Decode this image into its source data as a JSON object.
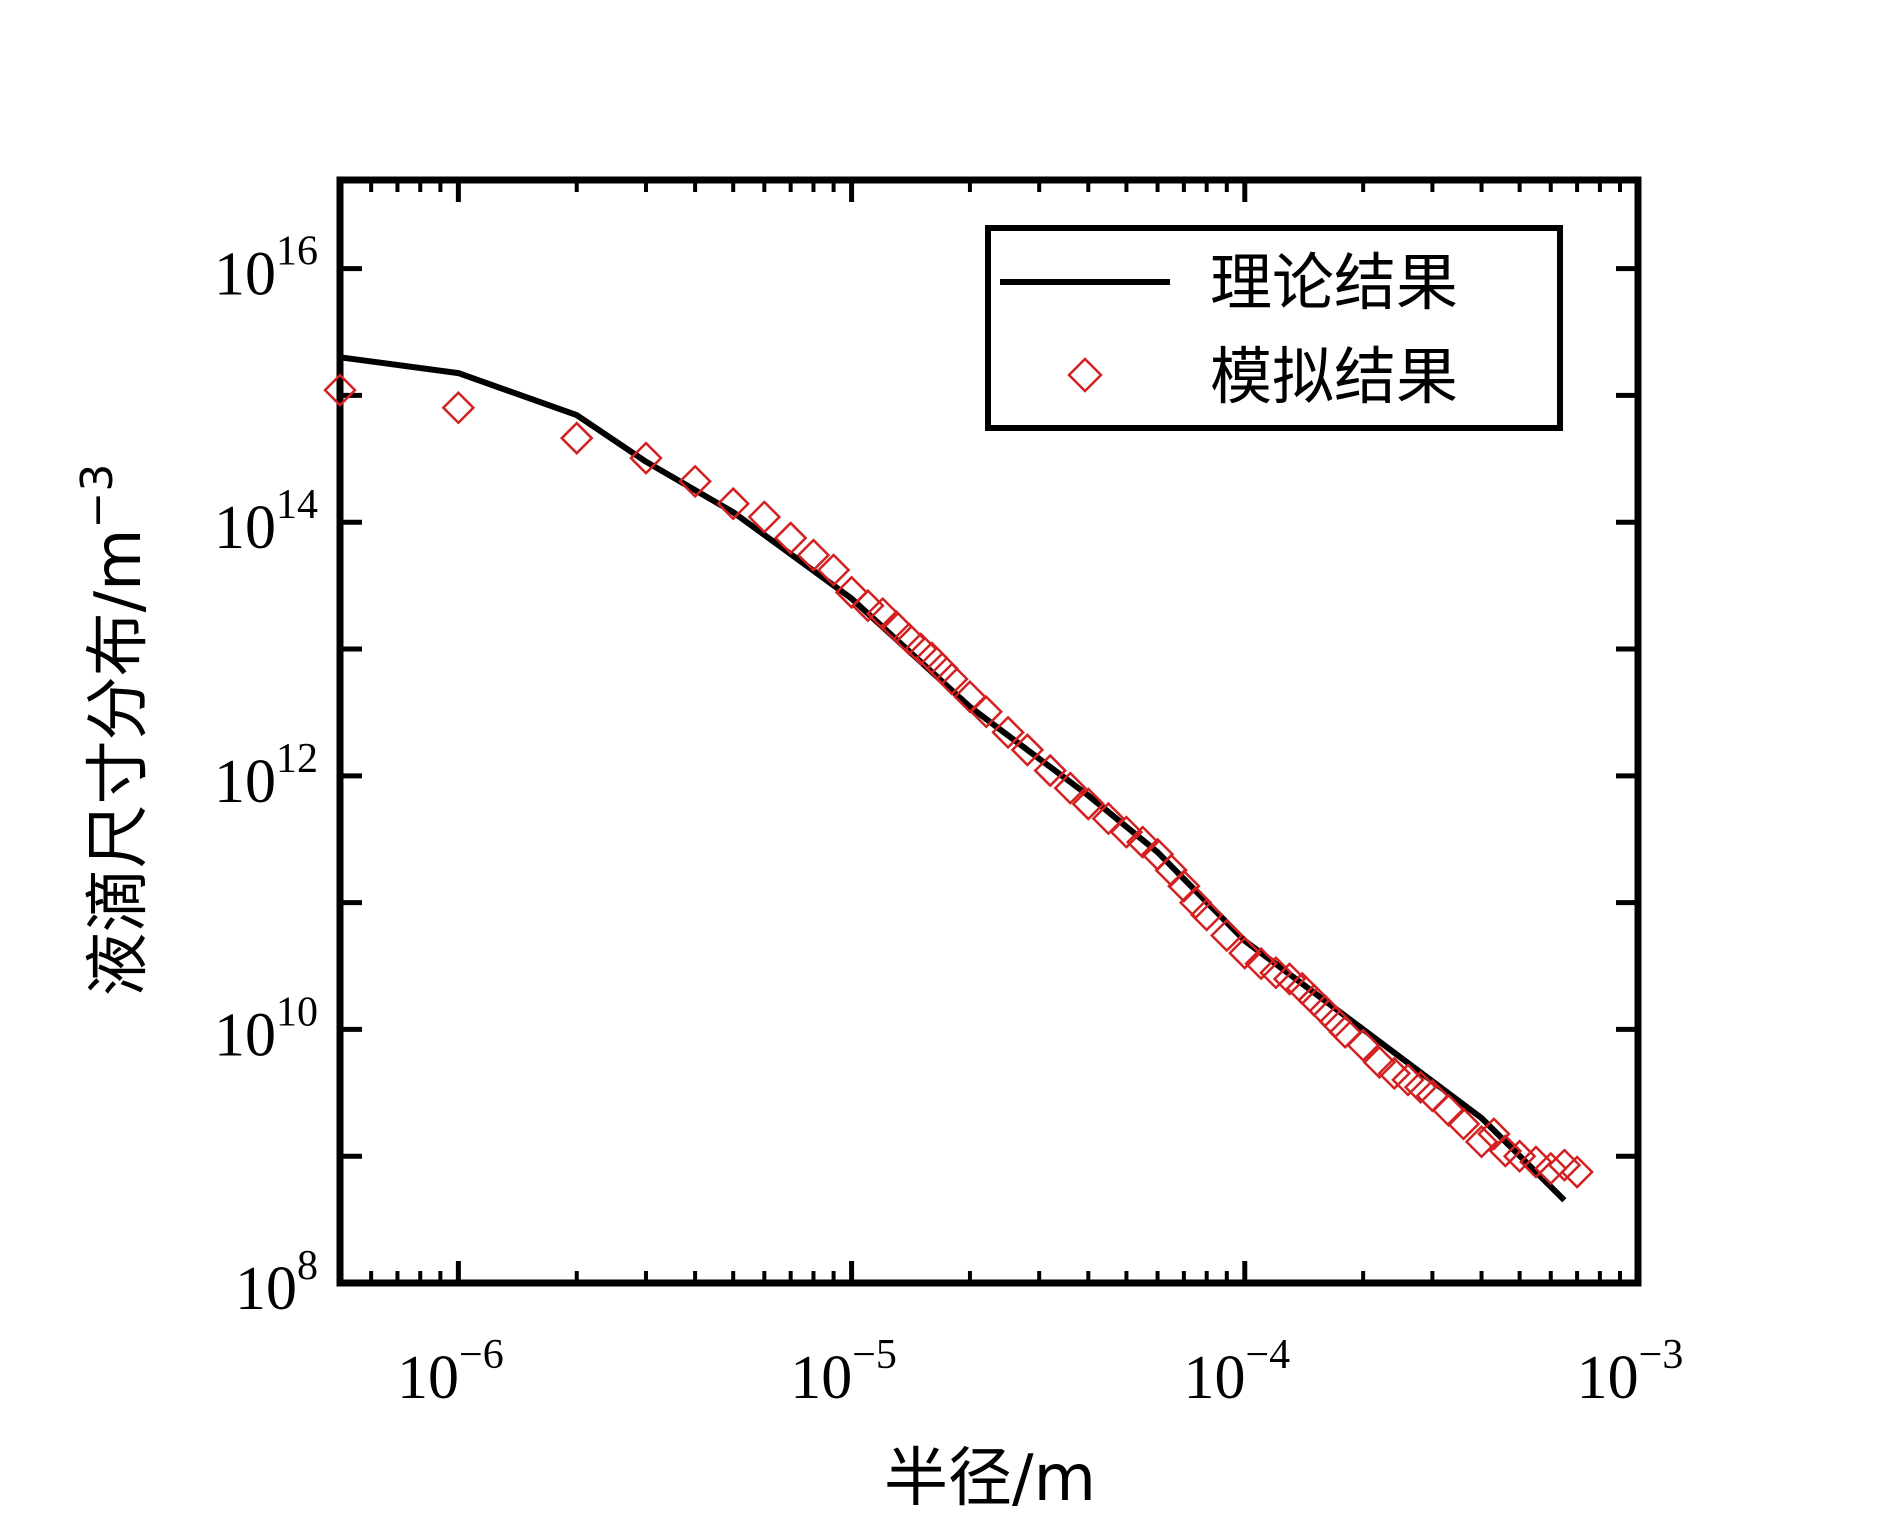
{
  "chart_data": {
    "type": "line",
    "title": "",
    "xlabel": "半径/m",
    "ylabel": "液滴尺寸分布/m",
    "ylabel_superscript": "−3",
    "x_scale": "log",
    "y_scale": "log",
    "xlim": [
      5e-07,
      0.001
    ],
    "ylim": [
      100000000.0,
      5e+16
    ],
    "x_ticks": [
      {
        "value": 1e-06,
        "base": "10",
        "exp": "−6"
      },
      {
        "value": 1e-05,
        "base": "10",
        "exp": "−5"
      },
      {
        "value": 0.0001,
        "base": "10",
        "exp": "−4"
      },
      {
        "value": 0.001,
        "base": "10",
        "exp": "−3"
      }
    ],
    "y_ticks": [
      {
        "value": 100000000.0,
        "base": "10",
        "exp": "8"
      },
      {
        "value": 10000000000.0,
        "base": "10",
        "exp": "10"
      },
      {
        "value": 1000000000000.0,
        "base": "10",
        "exp": "12"
      },
      {
        "value": 100000000000000.0,
        "base": "10",
        "exp": "14"
      },
      {
        "value": 1e+16,
        "base": "10",
        "exp": "16"
      }
    ],
    "grid": false,
    "legend_position": "top-right",
    "series": [
      {
        "name": "理论结果",
        "kind": "line",
        "color": "#000000",
        "x": [
          5e-07,
          1e-06,
          2e-06,
          3e-06,
          5e-06,
          1e-05,
          2e-05,
          4e-05,
          6e-05,
          0.0001,
          0.0002,
          0.0004,
          0.00065
        ],
        "y": [
          2000000000000000.0,
          1500000000000000.0,
          700000000000000.0,
          300000000000000.0,
          120000000000000.0,
          25000000000000.0,
          3500000000000.0,
          700000000000.0,
          250000000000.0,
          50000000000.0,
          10000000000.0,
          2000000000.0,
          450000000.0
        ]
      },
      {
        "name": "模拟结果",
        "kind": "scatter",
        "marker": "diamond",
        "color": "#d42020",
        "x": [
          5e-07,
          1e-06,
          2e-06,
          3e-06,
          4e-06,
          5e-06,
          6e-06,
          7e-06,
          8e-06,
          9e-06,
          1e-05,
          1.1e-05,
          1.2e-05,
          1.3e-05,
          1.4e-05,
          1.5e-05,
          1.6e-05,
          1.7e-05,
          1.8e-05,
          2e-05,
          2.2e-05,
          2.5e-05,
          2.8e-05,
          3.2e-05,
          3.6e-05,
          4e-05,
          4.5e-05,
          5e-05,
          5.5e-05,
          6e-05,
          6.5e-05,
          7e-05,
          7.5e-05,
          8e-05,
          9e-05,
          0.0001,
          0.00011,
          0.00012,
          0.00013,
          0.00014,
          0.00015,
          0.00016,
          0.00017,
          0.00018,
          0.0002,
          0.00022,
          0.00024,
          0.00026,
          0.00028,
          0.0003,
          0.00033,
          0.00036,
          0.0004,
          0.00043,
          0.00046,
          0.0005,
          0.00055,
          0.0006,
          0.00065,
          0.0007
        ],
        "y": [
          1100000000000000.0,
          800000000000000.0,
          460000000000000.0,
          320000000000000.0,
          210000000000000.0,
          140000000000000.0,
          110000000000000.0,
          75000000000000.0,
          55000000000000.0,
          42000000000000.0,
          28000000000000.0,
          22000000000000.0,
          19000000000000.0,
          15000000000000.0,
          12000000000000.0,
          10000000000000.0,
          8500000000000.0,
          7000000000000.0,
          5800000000000.0,
          4200000000000.0,
          3200000000000.0,
          2200000000000.0,
          1600000000000.0,
          1100000000000.0,
          800000000000.0,
          600000000000.0,
          460000000000.0,
          360000000000.0,
          300000000000.0,
          240000000000.0,
          180000000000.0,
          135000000000.0,
          100000000000.0,
          80000000000.0,
          55000000000.0,
          40000000000.0,
          33000000000.0,
          28000000000.0,
          25000000000.0,
          21000000000.0,
          17000000000.0,
          14000000000.0,
          11500000000.0,
          9500000000.0,
          7500000000.0,
          5500000000.0,
          4500000000.0,
          4000000000.0,
          3500000000.0,
          3000000000.0,
          2300000000.0,
          1800000000.0,
          1300000000.0,
          1500000000.0,
          1100000000.0,
          1000000000.0,
          900000000.0,
          800000000.0,
          850000000.0,
          750000000.0
        ]
      }
    ]
  }
}
